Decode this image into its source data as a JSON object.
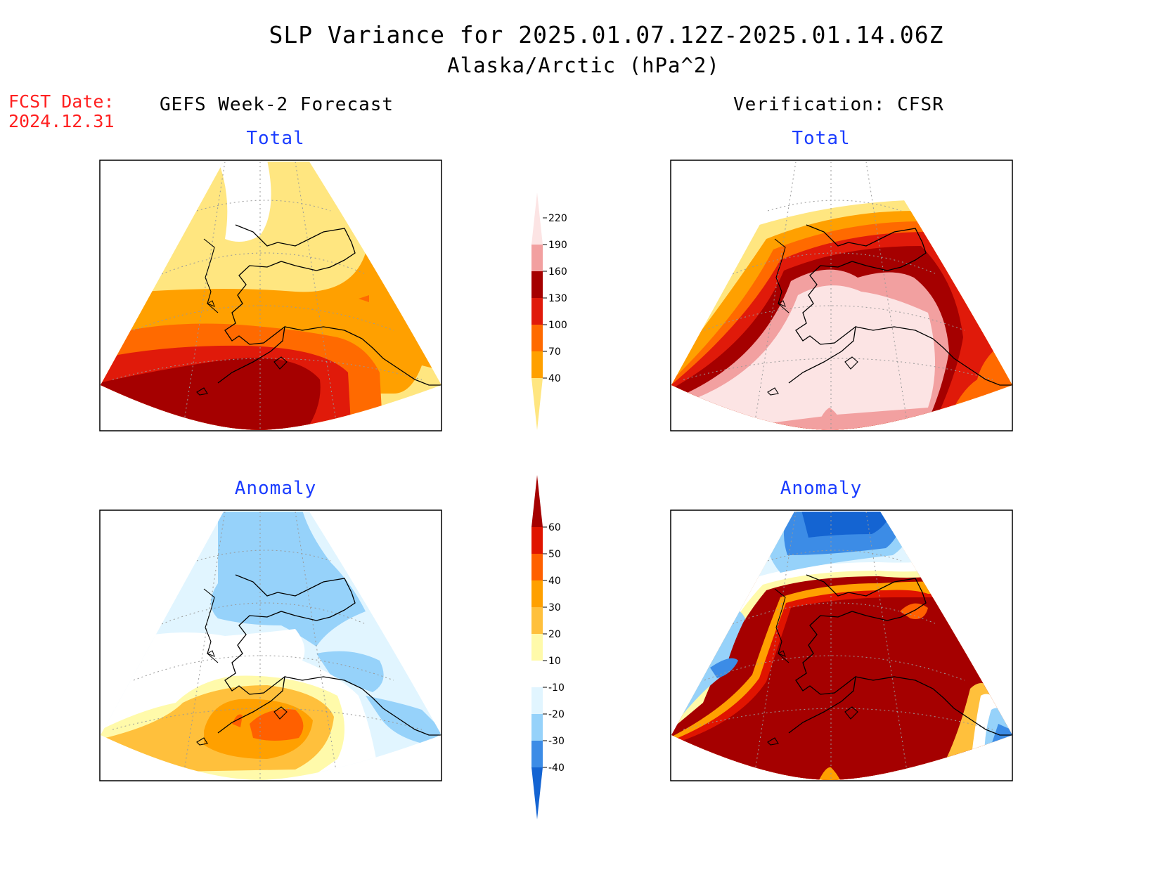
{
  "header": {
    "title": "SLP Variance for 2025.01.07.12Z-2025.01.14.06Z",
    "subtitle": "Alaska/Arctic (hPa^2)",
    "fcst_label": "FCST Date:",
    "fcst_date": "2024.12.31"
  },
  "columns": {
    "left": "GEFS Week-2 Forecast",
    "right": "Verification: CFSR"
  },
  "panels": {
    "forecast_total": "Total",
    "verification_total": "Total",
    "forecast_anomaly": "Anomaly",
    "verification_anomaly": "Anomaly"
  },
  "colorbars": {
    "total": {
      "ticks": [
        "40",
        "70",
        "100",
        "130",
        "160",
        "190",
        "220"
      ],
      "colors": [
        "#ffe680",
        "#ffa000",
        "#ff6a00",
        "#e01a0a",
        "#a50000",
        "#f2a0a0",
        "#fce4e4"
      ]
    },
    "anomaly": {
      "ticks": [
        "-40",
        "-30",
        "-20",
        "-10",
        "10",
        "20",
        "30",
        "40",
        "50",
        "60"
      ],
      "colors": [
        "#1464d2",
        "#3c8ce6",
        "#96d2fa",
        "#e1f5ff",
        "#ffffff",
        "#fffaaa",
        "#ffc03c",
        "#ffa000",
        "#ff6000",
        "#e01400",
        "#a50000"
      ]
    }
  }
}
